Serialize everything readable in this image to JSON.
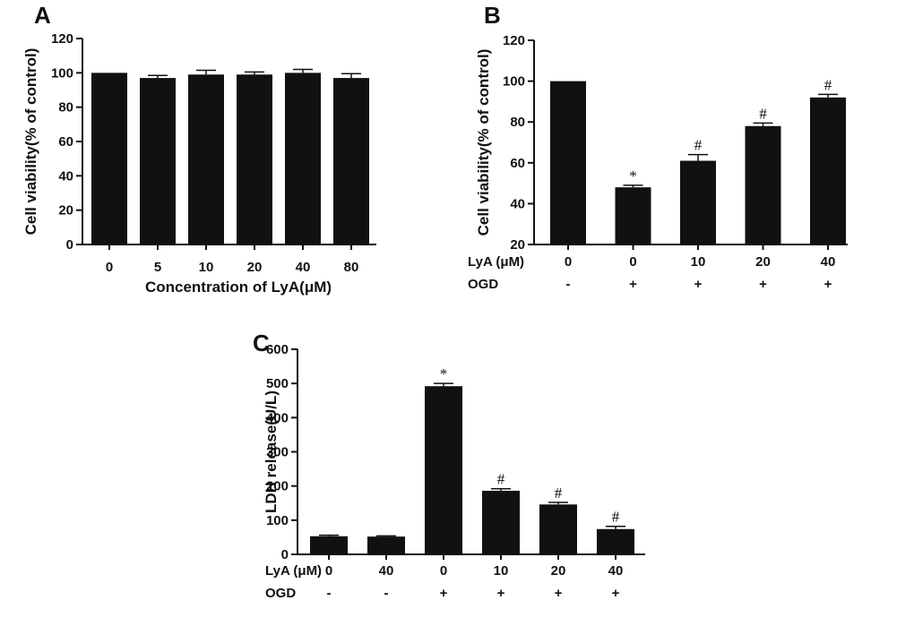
{
  "chart_data": [
    {
      "panel": "A",
      "type": "bar",
      "xlabel": "Concentration of LyA(μM)",
      "ylabel": "Cell viability(% of control)",
      "ylim": [
        0,
        120
      ],
      "yticks": [
        0,
        20,
        40,
        60,
        80,
        100,
        120
      ],
      "categories": [
        "0",
        "5",
        "10",
        "20",
        "40",
        "80"
      ],
      "values": [
        100,
        97,
        99,
        99,
        100,
        97
      ],
      "errors": [
        0,
        1.5,
        2.5,
        1.5,
        2,
        2.5
      ],
      "annotations": [
        "",
        "",
        "",
        "",
        "",
        ""
      ],
      "color": "#111111",
      "grid": false
    },
    {
      "panel": "B",
      "type": "bar",
      "xlabel": "",
      "ylabel": "Cell viability(% of control)",
      "ylim": [
        20,
        120
      ],
      "yticks": [
        20,
        40,
        60,
        80,
        100,
        120
      ],
      "conditions": [
        {
          "label": "LyA (μM)",
          "values": [
            "0",
            "0",
            "10",
            "20",
            "40"
          ]
        },
        {
          "label": "OGD",
          "values": [
            "-",
            "+",
            "+",
            "+",
            "+"
          ]
        }
      ],
      "values": [
        100,
        48,
        61,
        78,
        92
      ],
      "errors": [
        0,
        1,
        3,
        1.5,
        1.5
      ],
      "annotations": [
        "",
        "*",
        "#",
        "#",
        "#"
      ],
      "color": "#111111",
      "grid": false
    },
    {
      "panel": "C",
      "type": "bar",
      "xlabel": "",
      "ylabel": "LDH release(U/L)",
      "ylim": [
        0,
        600
      ],
      "yticks": [
        0,
        100,
        200,
        300,
        400,
        500,
        600
      ],
      "conditions": [
        {
          "label": "LyA (μM)",
          "values": [
            "0",
            "40",
            "0",
            "10",
            "20",
            "40"
          ]
        },
        {
          "label": "OGD",
          "values": [
            "-",
            "-",
            "+",
            "+",
            "+",
            "+"
          ]
        }
      ],
      "values": [
        53,
        52,
        492,
        186,
        146,
        74
      ],
      "errors": [
        3,
        2,
        8,
        6,
        6,
        8
      ],
      "annotations": [
        "",
        "",
        "*",
        "#",
        "#",
        "#"
      ],
      "color": "#111111",
      "grid": false
    }
  ]
}
